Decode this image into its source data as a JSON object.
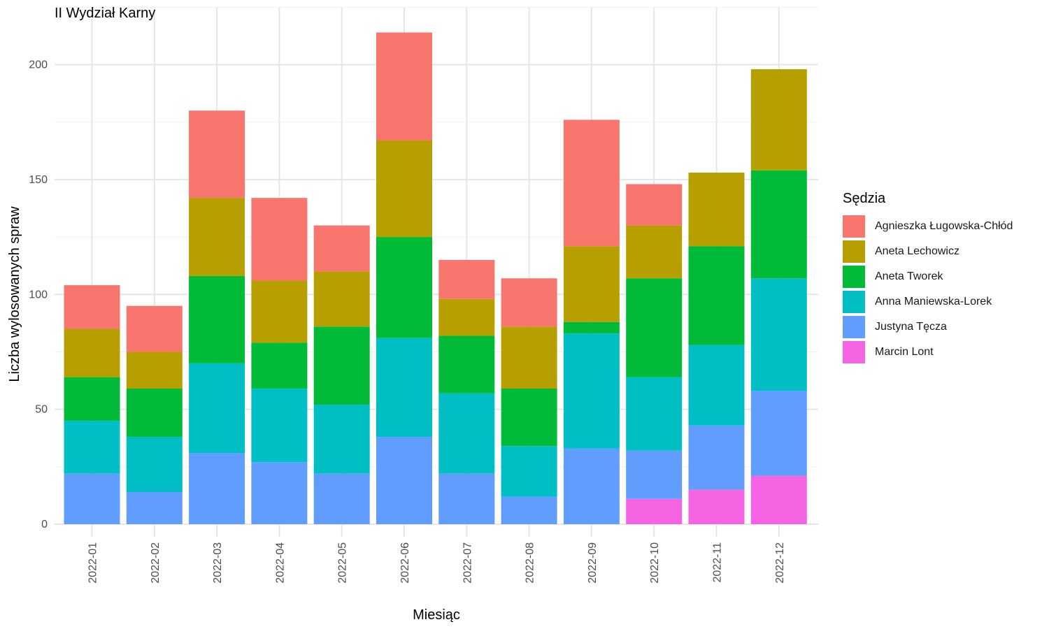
{
  "chart_data": {
    "type": "bar",
    "stacked": true,
    "title": "II Wydział Karny",
    "xlabel": "Miesiąc",
    "ylabel": "Liczba wylosowanych spraw",
    "ylim": [
      0,
      225
    ],
    "yticks": [
      0,
      50,
      100,
      150,
      200
    ],
    "grid": true,
    "legend_position": "right",
    "legend_title": "Sędzia",
    "categories": [
      "2022-01",
      "2022-02",
      "2022-03",
      "2022-04",
      "2022-05",
      "2022-06",
      "2022-07",
      "2022-08",
      "2022-09",
      "2022-10",
      "2022-11",
      "2022-12"
    ],
    "series": [
      {
        "name": "Marcin Lont",
        "color": "#F564E3",
        "values": [
          0,
          0,
          0,
          0,
          0,
          0,
          0,
          0,
          0,
          11,
          15,
          21
        ]
      },
      {
        "name": "Justyna Tęcza",
        "color": "#619CFF",
        "values": [
          22,
          14,
          31,
          27,
          22,
          38,
          22,
          12,
          33,
          21,
          28,
          37
        ]
      },
      {
        "name": "Anna Maniewska-Lorek",
        "color": "#00BFC4",
        "values": [
          23,
          24,
          39,
          32,
          30,
          43,
          35,
          22,
          50,
          32,
          35,
          49
        ]
      },
      {
        "name": "Aneta Tworek",
        "color": "#00BA38",
        "values": [
          19,
          21,
          38,
          20,
          34,
          44,
          25,
          25,
          5,
          43,
          43,
          47
        ]
      },
      {
        "name": "Aneta Lechowicz",
        "color": "#B79F00",
        "values": [
          21,
          16,
          34,
          27,
          24,
          42,
          16,
          27,
          33,
          23,
          32,
          44
        ]
      },
      {
        "name": "Agnieszka Ługowska-Chłód",
        "color": "#F8766D",
        "values": [
          19,
          20,
          38,
          36,
          20,
          47,
          17,
          21,
          55,
          18,
          0,
          0
        ]
      }
    ],
    "legend_order": [
      "Agnieszka Ługowska-Chłód",
      "Aneta Lechowicz",
      "Aneta Tworek",
      "Anna Maniewska-Lorek",
      "Justyna Tęcza",
      "Marcin Lont"
    ]
  }
}
